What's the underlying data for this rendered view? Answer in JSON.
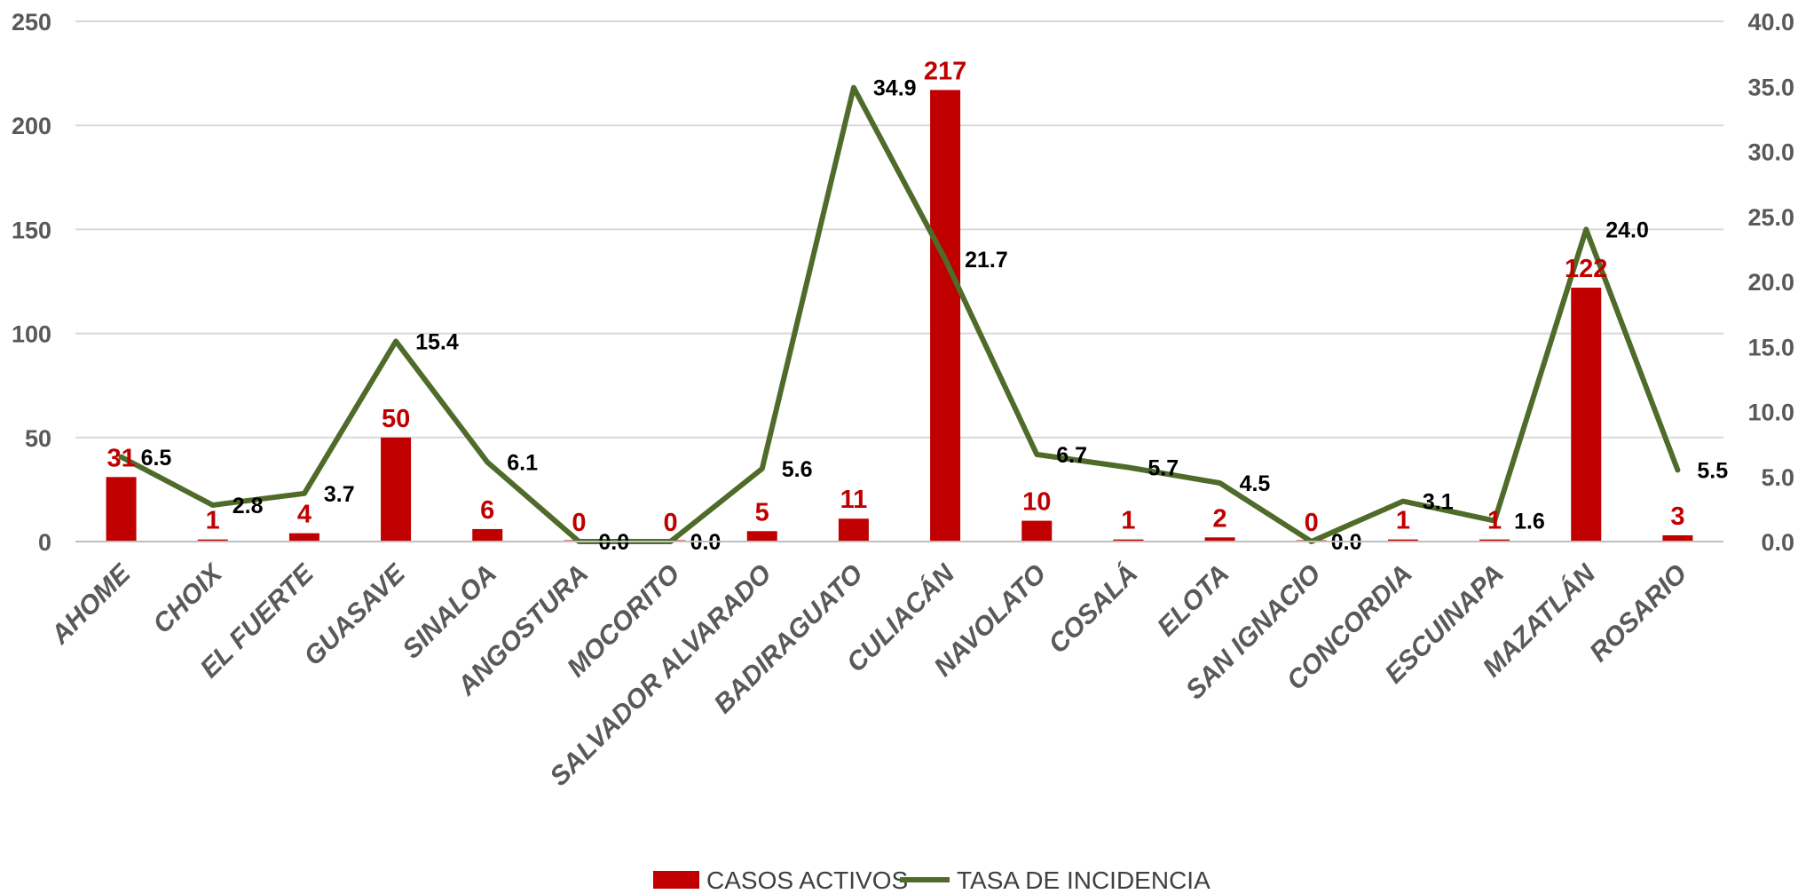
{
  "chart_data": {
    "type": "bar",
    "categories": [
      "AHOME",
      "CHOIX",
      "EL FUERTE",
      "GUASAVE",
      "SINALOA",
      "ANGOSTURA",
      "MOCORITO",
      "SALVADOR ALVARADO",
      "BADIRAGUATO",
      "CULIACÁN",
      "NAVOLATO",
      "COSALÁ",
      "ELOTA",
      "SAN IGNACIO",
      "CONCORDIA",
      "ESCUINAPA",
      "MAZATLÁN",
      "ROSARIO"
    ],
    "series": [
      {
        "name": "CASOS ACTIVOS",
        "type": "bar",
        "axis": "left",
        "color": "#C00000",
        "values": [
          31,
          1,
          4,
          50,
          6,
          0,
          0,
          5,
          11,
          217,
          10,
          1,
          2,
          0,
          1,
          1,
          122,
          3
        ],
        "labels": [
          "31",
          "1",
          "4",
          "50",
          "6",
          "0",
          "0",
          "5",
          "11",
          "217",
          "10",
          "1",
          "2",
          "0",
          "1",
          "1",
          "122",
          "3"
        ]
      },
      {
        "name": "TASA DE INCIDENCIA",
        "type": "line",
        "axis": "right",
        "color": "#4F6B2A",
        "values": [
          6.5,
          2.8,
          3.7,
          15.4,
          6.1,
          0.0,
          0.0,
          5.6,
          34.9,
          21.7,
          6.7,
          5.7,
          4.5,
          0.0,
          3.1,
          1.6,
          24.0,
          5.5
        ],
        "labels": [
          "6.5",
          "2.8",
          "3.7",
          "15.4",
          "6.1",
          "0.0",
          "0.0",
          "5.6",
          "34.9",
          "21.7",
          "6.7",
          "5.7",
          "4.5",
          "0.0",
          "3.1",
          "1.6",
          "24.0",
          "5.5"
        ]
      }
    ],
    "y_left": {
      "min": 0,
      "max": 250,
      "ticks": [
        "0",
        "50",
        "100",
        "150",
        "200",
        "250"
      ]
    },
    "y_right": {
      "min": 0,
      "max": 40,
      "ticks": [
        "0.0",
        "5.0",
        "10.0",
        "15.0",
        "20.0",
        "25.0",
        "30.0",
        "35.0",
        "40.0"
      ]
    },
    "grid": true,
    "legend": "bottom"
  }
}
